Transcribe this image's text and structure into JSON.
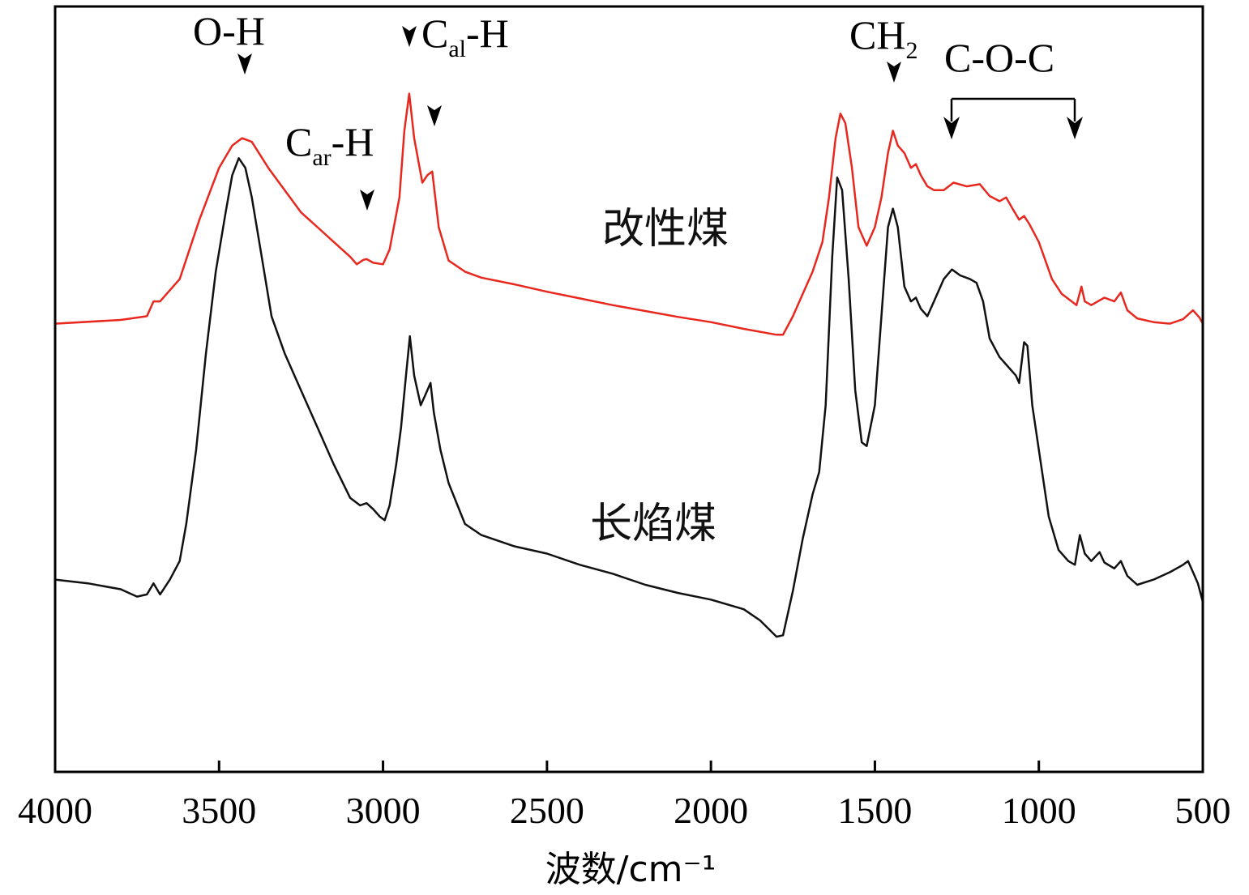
{
  "chart_data": {
    "type": "line",
    "xlabel": "波数/cm⁻¹",
    "ylabel": "",
    "xlim": [
      4000,
      500
    ],
    "xreversed": true,
    "xticks": [
      4000,
      3500,
      3000,
      2500,
      2000,
      1500,
      1000,
      500
    ],
    "xtick_labels": [
      "4000",
      "3500",
      "3000",
      "2500",
      "2000",
      "1500",
      "1000",
      "500"
    ],
    "ylim": [
      0,
      1
    ],
    "yticks_shown": false,
    "grid": false,
    "series": [
      {
        "name": "改性煤",
        "color": "#e8281e",
        "points": [
          [
            4000,
            0.59
          ],
          [
            3800,
            0.595
          ],
          [
            3720,
            0.6
          ],
          [
            3700,
            0.62
          ],
          [
            3680,
            0.62
          ],
          [
            3620,
            0.65
          ],
          [
            3560,
            0.73
          ],
          [
            3500,
            0.8
          ],
          [
            3460,
            0.83
          ],
          [
            3430,
            0.84
          ],
          [
            3400,
            0.835
          ],
          [
            3350,
            0.8
          ],
          [
            3300,
            0.77
          ],
          [
            3250,
            0.74
          ],
          [
            3200,
            0.72
          ],
          [
            3150,
            0.7
          ],
          [
            3100,
            0.68
          ],
          [
            3080,
            0.67
          ],
          [
            3060,
            0.676
          ],
          [
            3050,
            0.677
          ],
          [
            3030,
            0.672
          ],
          [
            3000,
            0.67
          ],
          [
            2980,
            0.69
          ],
          [
            2950,
            0.76
          ],
          [
            2935,
            0.85
          ],
          [
            2920,
            0.9
          ],
          [
            2905,
            0.84
          ],
          [
            2880,
            0.78
          ],
          [
            2865,
            0.79
          ],
          [
            2850,
            0.795
          ],
          [
            2830,
            0.72
          ],
          [
            2800,
            0.675
          ],
          [
            2750,
            0.66
          ],
          [
            2700,
            0.652
          ],
          [
            2600,
            0.643
          ],
          [
            2500,
            0.633
          ],
          [
            2400,
            0.624
          ],
          [
            2300,
            0.615
          ],
          [
            2200,
            0.607
          ],
          [
            2100,
            0.599
          ],
          [
            2000,
            0.592
          ],
          [
            1900,
            0.583
          ],
          [
            1800,
            0.575
          ],
          [
            1780,
            0.575
          ],
          [
            1750,
            0.6
          ],
          [
            1720,
            0.63
          ],
          [
            1690,
            0.66
          ],
          [
            1660,
            0.7
          ],
          [
            1640,
            0.76
          ],
          [
            1620,
            0.84
          ],
          [
            1605,
            0.873
          ],
          [
            1590,
            0.86
          ],
          [
            1570,
            0.8
          ],
          [
            1550,
            0.72
          ],
          [
            1525,
            0.695
          ],
          [
            1500,
            0.72
          ],
          [
            1480,
            0.76
          ],
          [
            1460,
            0.82
          ],
          [
            1445,
            0.85
          ],
          [
            1430,
            0.83
          ],
          [
            1410,
            0.82
          ],
          [
            1390,
            0.8
          ],
          [
            1375,
            0.805
          ],
          [
            1360,
            0.79
          ],
          [
            1340,
            0.775
          ],
          [
            1320,
            0.77
          ],
          [
            1290,
            0.77
          ],
          [
            1260,
            0.78
          ],
          [
            1220,
            0.775
          ],
          [
            1180,
            0.778
          ],
          [
            1150,
            0.762
          ],
          [
            1120,
            0.755
          ],
          [
            1100,
            0.76
          ],
          [
            1080,
            0.745
          ],
          [
            1060,
            0.73
          ],
          [
            1045,
            0.735
          ],
          [
            1030,
            0.725
          ],
          [
            1000,
            0.7
          ],
          [
            960,
            0.65
          ],
          [
            930,
            0.63
          ],
          [
            900,
            0.62
          ],
          [
            885,
            0.615
          ],
          [
            870,
            0.64
          ],
          [
            860,
            0.62
          ],
          [
            840,
            0.615
          ],
          [
            800,
            0.625
          ],
          [
            770,
            0.62
          ],
          [
            750,
            0.632
          ],
          [
            730,
            0.608
          ],
          [
            700,
            0.597
          ],
          [
            650,
            0.592
          ],
          [
            600,
            0.59
          ],
          [
            560,
            0.596
          ],
          [
            530,
            0.608
          ],
          [
            510,
            0.598
          ],
          [
            500,
            0.59
          ]
        ]
      },
      {
        "name": "长焰煤",
        "color": "#111111",
        "points": [
          [
            4000,
            0.245
          ],
          [
            3900,
            0.24
          ],
          [
            3800,
            0.232
          ],
          [
            3750,
            0.222
          ],
          [
            3720,
            0.225
          ],
          [
            3700,
            0.24
          ],
          [
            3680,
            0.225
          ],
          [
            3650,
            0.245
          ],
          [
            3620,
            0.27
          ],
          [
            3600,
            0.32
          ],
          [
            3570,
            0.42
          ],
          [
            3540,
            0.55
          ],
          [
            3510,
            0.66
          ],
          [
            3480,
            0.74
          ],
          [
            3460,
            0.79
          ],
          [
            3440,
            0.813
          ],
          [
            3420,
            0.8
          ],
          [
            3400,
            0.76
          ],
          [
            3370,
            0.68
          ],
          [
            3340,
            0.6
          ],
          [
            3300,
            0.55
          ],
          [
            3250,
            0.5
          ],
          [
            3200,
            0.45
          ],
          [
            3150,
            0.4
          ],
          [
            3100,
            0.355
          ],
          [
            3070,
            0.345
          ],
          [
            3050,
            0.348
          ],
          [
            3030,
            0.34
          ],
          [
            3010,
            0.33
          ],
          [
            2995,
            0.325
          ],
          [
            2980,
            0.345
          ],
          [
            2960,
            0.4
          ],
          [
            2945,
            0.45
          ],
          [
            2930,
            0.52
          ],
          [
            2918,
            0.573
          ],
          [
            2905,
            0.52
          ],
          [
            2885,
            0.48
          ],
          [
            2870,
            0.495
          ],
          [
            2855,
            0.51
          ],
          [
            2845,
            0.47
          ],
          [
            2825,
            0.42
          ],
          [
            2800,
            0.375
          ],
          [
            2750,
            0.32
          ],
          [
            2700,
            0.305
          ],
          [
            2600,
            0.29
          ],
          [
            2500,
            0.28
          ],
          [
            2400,
            0.265
          ],
          [
            2300,
            0.253
          ],
          [
            2200,
            0.238
          ],
          [
            2100,
            0.227
          ],
          [
            2000,
            0.218
          ],
          [
            1900,
            0.205
          ],
          [
            1850,
            0.19
          ],
          [
            1800,
            0.168
          ],
          [
            1780,
            0.17
          ],
          [
            1750,
            0.23
          ],
          [
            1720,
            0.3
          ],
          [
            1690,
            0.36
          ],
          [
            1670,
            0.39
          ],
          [
            1650,
            0.48
          ],
          [
            1630,
            0.68
          ],
          [
            1615,
            0.787
          ],
          [
            1600,
            0.77
          ],
          [
            1580,
            0.65
          ],
          [
            1560,
            0.5
          ],
          [
            1540,
            0.43
          ],
          [
            1525,
            0.425
          ],
          [
            1500,
            0.48
          ],
          [
            1480,
            0.6
          ],
          [
            1460,
            0.72
          ],
          [
            1445,
            0.745
          ],
          [
            1430,
            0.72
          ],
          [
            1410,
            0.64
          ],
          [
            1390,
            0.62
          ],
          [
            1375,
            0.625
          ],
          [
            1360,
            0.61
          ],
          [
            1340,
            0.6
          ],
          [
            1320,
            0.62
          ],
          [
            1290,
            0.65
          ],
          [
            1265,
            0.663
          ],
          [
            1240,
            0.655
          ],
          [
            1210,
            0.65
          ],
          [
            1190,
            0.645
          ],
          [
            1170,
            0.62
          ],
          [
            1150,
            0.57
          ],
          [
            1120,
            0.545
          ],
          [
            1090,
            0.53
          ],
          [
            1070,
            0.52
          ],
          [
            1060,
            0.51
          ],
          [
            1045,
            0.565
          ],
          [
            1035,
            0.56
          ],
          [
            1020,
            0.48
          ],
          [
            1000,
            0.42
          ],
          [
            970,
            0.33
          ],
          [
            940,
            0.285
          ],
          [
            910,
            0.27
          ],
          [
            890,
            0.265
          ],
          [
            875,
            0.305
          ],
          [
            860,
            0.28
          ],
          [
            840,
            0.27
          ],
          [
            815,
            0.282
          ],
          [
            800,
            0.268
          ],
          [
            770,
            0.26
          ],
          [
            750,
            0.27
          ],
          [
            730,
            0.25
          ],
          [
            700,
            0.238
          ],
          [
            650,
            0.245
          ],
          [
            600,
            0.255
          ],
          [
            560,
            0.265
          ],
          [
            545,
            0.27
          ],
          [
            530,
            0.255
          ],
          [
            515,
            0.24
          ],
          [
            500,
            0.215
          ]
        ]
      }
    ],
    "annotations": [
      {
        "text": "O-H"
      },
      {
        "base": "C",
        "sub": "ar",
        "rest": "-H"
      },
      {
        "base": "C",
        "sub": "al",
        "rest": "-H"
      },
      {
        "base": "CH",
        "sub": "2",
        "rest": ""
      },
      {
        "text": "C-O-C"
      }
    ],
    "series_labels": [
      "改性煤",
      "长焰煤"
    ]
  }
}
